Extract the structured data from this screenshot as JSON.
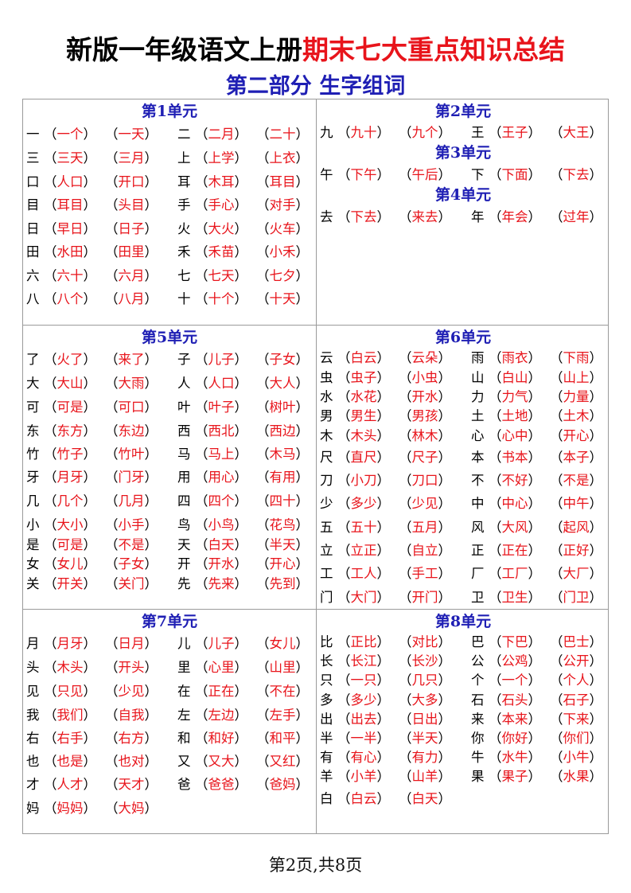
{
  "header": {
    "title_black": "新版一年级语文上册",
    "title_red": "期末七大重点知识总结",
    "subtitle": "第二部分 生字组词"
  },
  "colors": {
    "title_red": "#e8141b",
    "unit_blue": "#1f1fb4",
    "word_red": "#e8141b"
  },
  "cells": [
    {
      "units": [
        {
          "title": "第1单元",
          "rows": [
            [
              [
                "一",
                "一个",
                "一天"
              ],
              [
                "二",
                "二月",
                "二十"
              ]
            ],
            [
              [
                "三",
                "三天",
                "三月"
              ],
              [
                "上",
                "上学",
                "上衣"
              ]
            ],
            [
              [
                "口",
                "人口",
                "开口"
              ],
              [
                "耳",
                "木耳",
                "耳目"
              ]
            ],
            [
              [
                "目",
                "耳目",
                "头目"
              ],
              [
                "手",
                "手心",
                "对手"
              ]
            ],
            [
              [
                "日",
                "早日",
                "日子"
              ],
              [
                "火",
                "大火",
                "火车"
              ]
            ],
            [
              [
                "田",
                "水田",
                "田里"
              ],
              [
                "禾",
                "禾苗",
                "小禾"
              ]
            ],
            [
              [
                "六",
                "六十",
                "六月"
              ],
              [
                "七",
                "七天",
                "七夕"
              ]
            ],
            [
              [
                "八",
                "八个",
                "八月"
              ],
              [
                "十",
                "十个",
                "十天"
              ]
            ]
          ]
        }
      ]
    },
    {
      "units": [
        {
          "title": "第2单元",
          "rows": [
            [
              [
                "九",
                "九十",
                "九个"
              ],
              [
                "王",
                "王子",
                "大王"
              ]
            ]
          ]
        },
        {
          "title": "第3单元",
          "rows": [
            [
              [
                "午",
                "下午",
                "午后"
              ],
              [
                "下",
                "下面",
                "下去"
              ]
            ]
          ]
        },
        {
          "title": "第4单元",
          "rows": [
            [
              [
                "去",
                "下去",
                "来去"
              ],
              [
                "年",
                "年会",
                "过年"
              ]
            ]
          ]
        }
      ]
    },
    {
      "units": [
        {
          "title": "第5单元",
          "rows": [
            [
              [
                "了",
                "火了",
                "来了"
              ],
              [
                "子",
                "儿子",
                "子女"
              ]
            ],
            [
              [
                "大",
                "大山",
                "大雨"
              ],
              [
                "人",
                "人口",
                "大人"
              ]
            ],
            [
              [
                "可",
                "可是",
                "可口"
              ],
              [
                "叶",
                "叶子",
                "树叶"
              ]
            ],
            [
              [
                "东",
                "东方",
                "东边"
              ],
              [
                "西",
                "西北",
                "西边"
              ]
            ],
            [
              [
                "竹",
                "竹子",
                "竹叶"
              ],
              [
                "马",
                "马上",
                "木马"
              ]
            ],
            [
              [
                "牙",
                "月牙",
                "门牙"
              ],
              [
                "用",
                "用心",
                "有用"
              ]
            ],
            [
              [
                "几",
                "几个",
                "几月"
              ],
              [
                "四",
                "四个",
                "四十"
              ]
            ],
            [
              [
                "小",
                "大小",
                "小手"
              ],
              [
                "鸟",
                "小鸟",
                "花鸟"
              ]
            ],
            [
              [
                "是",
                "可是",
                "不是"
              ],
              [
                "天",
                "白天",
                "半天"
              ]
            ],
            [
              [
                "女",
                "女儿",
                "子女"
              ],
              [
                "开",
                "开水",
                "开心"
              ]
            ],
            [
              [
                "关",
                "开关",
                "关门"
              ],
              [
                "先",
                "先来",
                "先到"
              ]
            ]
          ]
        }
      ]
    },
    {
      "units": [
        {
          "title": "第6单元",
          "rows": [
            [
              [
                "云",
                "白云",
                "云朵"
              ],
              [
                "雨",
                "雨衣",
                "下雨"
              ]
            ],
            [
              [
                "虫",
                "虫子",
                "小虫"
              ],
              [
                "山",
                "白山",
                "山上"
              ]
            ],
            [
              [
                "水",
                "水花",
                "开水"
              ],
              [
                "力",
                "力气",
                "力量"
              ]
            ],
            [
              [
                "男",
                "男生",
                "男孩"
              ],
              [
                "土",
                "土地",
                "土木"
              ]
            ],
            [
              [
                "木",
                "木头",
                "林木"
              ],
              [
                "心",
                "心中",
                "开心"
              ]
            ],
            [
              [
                "尺",
                "直尺",
                "尺子"
              ],
              [
                "本",
                "书本",
                "本子"
              ]
            ],
            [
              [
                "刀",
                "小刀",
                "刀口"
              ],
              [
                "不",
                "不好",
                "不是"
              ]
            ],
            [
              [
                "少",
                "多少",
                "少见"
              ],
              [
                "中",
                "中心",
                "中午"
              ]
            ],
            [
              [
                "五",
                "五十",
                "五月"
              ],
              [
                "风",
                "大风",
                "起风"
              ]
            ],
            [
              [
                "立",
                "立正",
                "自立"
              ],
              [
                "正",
                "正在",
                "正好"
              ]
            ],
            [
              [
                "工",
                "工人",
                "手工"
              ],
              [
                "厂",
                "工厂",
                "大厂"
              ]
            ],
            [
              [
                "门",
                "大门",
                "开门"
              ],
              [
                "卫",
                "卫生",
                "门卫"
              ]
            ]
          ]
        }
      ]
    },
    {
      "units": [
        {
          "title": "第7单元",
          "rows": [
            [
              [
                "月",
                "月牙",
                "日月"
              ],
              [
                "儿",
                "儿子",
                "女儿"
              ]
            ],
            [
              [
                "头",
                "木头",
                "开头"
              ],
              [
                "里",
                "心里",
                "山里"
              ]
            ],
            [
              [
                "见",
                "只见",
                "少见"
              ],
              [
                "在",
                "正在",
                "不在"
              ]
            ],
            [
              [
                "我",
                "我们",
                "自我"
              ],
              [
                "左",
                "左边",
                "左手"
              ]
            ],
            [
              [
                "右",
                "右手",
                "右方"
              ],
              [
                "和",
                "和好",
                "和平"
              ]
            ],
            [
              [
                "也",
                "也是",
                "也对"
              ],
              [
                "又",
                "又大",
                "又红"
              ]
            ],
            [
              [
                "才",
                "人才",
                "天才"
              ],
              [
                "爸",
                "爸爸",
                "爸妈"
              ]
            ],
            [
              [
                "妈",
                "妈妈",
                "大妈"
              ]
            ]
          ]
        }
      ]
    },
    {
      "units": [
        {
          "title": "第8单元",
          "rows": [
            [
              [
                "比",
                "正比",
                "对比"
              ],
              [
                "巴",
                "下巴",
                "巴士"
              ]
            ],
            [
              [
                "长",
                "长江",
                "长沙"
              ],
              [
                "公",
                "公鸡",
                "公开"
              ]
            ],
            [
              [
                "只",
                "一只",
                "几只"
              ],
              [
                "个",
                "一个",
                "个人"
              ]
            ],
            [
              [
                "多",
                "多少",
                "大多"
              ],
              [
                "石",
                "石头",
                "石子"
              ]
            ],
            [
              [
                "出",
                "出去",
                "日出"
              ],
              [
                "来",
                "本来",
                "下来"
              ]
            ],
            [
              [
                "半",
                "一半",
                "半天"
              ],
              [
                "你",
                "你好",
                "你们"
              ]
            ],
            [
              [
                "有",
                "有心",
                "有力"
              ],
              [
                "牛",
                "水牛",
                "小牛"
              ]
            ],
            [
              [
                "羊",
                "小羊",
                "山羊"
              ],
              [
                "果",
                "果子",
                "水果"
              ]
            ],
            [
              [
                "白",
                "白云",
                "白天"
              ]
            ]
          ]
        }
      ]
    }
  ],
  "footer": {
    "page_label": "第2页,共8页"
  }
}
